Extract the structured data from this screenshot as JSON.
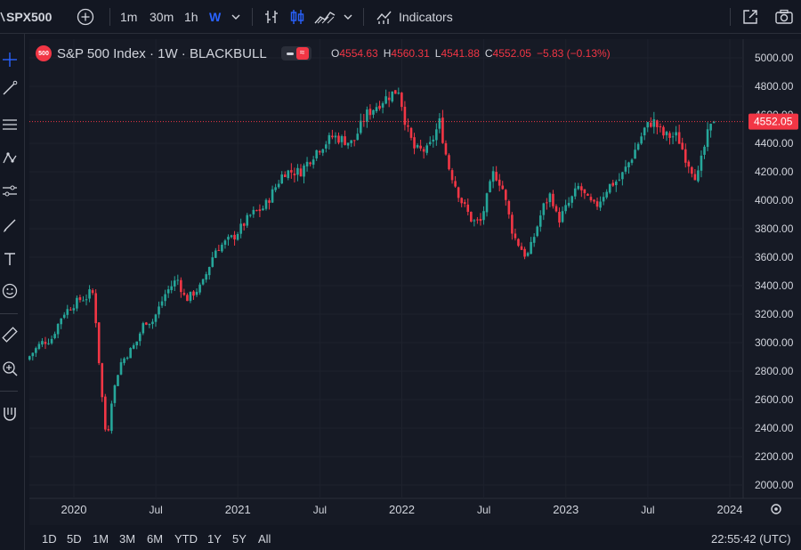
{
  "toolbar": {
    "symbol": "SPX500",
    "intervals": [
      "1m",
      "30m",
      "1h",
      "W"
    ],
    "active_interval": "W",
    "indicators_label": "Indicators"
  },
  "legend": {
    "badge": "500",
    "title": "S&P 500 Index · 1W · BLACKBULL",
    "ohlc": {
      "open_label": "O",
      "open": "4554.63",
      "high_label": "H",
      "high": "4560.31",
      "low_label": "L",
      "low": "4541.88",
      "close_label": "C",
      "close": "4552.05",
      "change": "−5.83 (−0.13%)"
    }
  },
  "price_label": "4552.05",
  "bottom": {
    "ranges": [
      "1D",
      "5D",
      "1M",
      "3M",
      "6M",
      "YTD",
      "1Y",
      "5Y",
      "All"
    ],
    "clock": "22:55:42 (UTC)"
  },
  "colors": {
    "up": "#26a69a",
    "down": "#f23645",
    "background": "#131722",
    "text": "#d1d4dc",
    "accent": "#2962ff"
  },
  "chart_data": {
    "type": "candlestick",
    "title": "S&P 500 Index · 1W · BLACKBULL",
    "ylim": [
      1930,
      5100
    ],
    "y_ticks": [
      "5000.00",
      "4800.00",
      "4600.00",
      "4400.00",
      "4200.00",
      "4000.00",
      "3800.00",
      "3600.00",
      "3400.00",
      "3200.00",
      "3000.00",
      "2800.00",
      "2600.00",
      "2400.00",
      "2200.00",
      "2000.00"
    ],
    "x_ticks": [
      {
        "label": "2020",
        "t": 2020.0
      },
      {
        "label": "Jul",
        "t": 2020.5
      },
      {
        "label": "2021",
        "t": 2021.0
      },
      {
        "label": "Jul",
        "t": 2021.5
      },
      {
        "label": "2022",
        "t": 2022.0
      },
      {
        "label": "Jul",
        "t": 2022.5
      },
      {
        "label": "2023",
        "t": 2023.0
      },
      {
        "label": "Jul",
        "t": 2023.5
      },
      {
        "label": "2024",
        "t": 2024.0
      }
    ],
    "x_range": [
      2019.72,
      2024.1
    ],
    "last_price": 4552.05,
    "anchors": [
      [
        2019.73,
        2880
      ],
      [
        2019.82,
        3000
      ],
      [
        2019.88,
        3020
      ],
      [
        2019.95,
        3200
      ],
      [
        2020.05,
        3300
      ],
      [
        2020.1,
        3320
      ],
      [
        2020.13,
        3380
      ],
      [
        2020.15,
        3200
      ],
      [
        2020.17,
        2900
      ],
      [
        2020.2,
        2500
      ],
      [
        2020.22,
        2300
      ],
      [
        2020.25,
        2600
      ],
      [
        2020.3,
        2850
      ],
      [
        2020.4,
        3000
      ],
      [
        2020.45,
        3150
      ],
      [
        2020.5,
        3150
      ],
      [
        2020.58,
        3350
      ],
      [
        2020.65,
        3450
      ],
      [
        2020.7,
        3300
      ],
      [
        2020.8,
        3400
      ],
      [
        2020.88,
        3650
      ],
      [
        2021.0,
        3750
      ],
      [
        2021.1,
        3900
      ],
      [
        2021.18,
        3950
      ],
      [
        2021.3,
        4200
      ],
      [
        2021.4,
        4200
      ],
      [
        2021.5,
        4350
      ],
      [
        2021.6,
        4450
      ],
      [
        2021.72,
        4400
      ],
      [
        2021.8,
        4600
      ],
      [
        2021.9,
        4700
      ],
      [
        2021.96,
        4750
      ],
      [
        2022.0,
        4780
      ],
      [
        2022.05,
        4500
      ],
      [
        2022.1,
        4350
      ],
      [
        2022.18,
        4350
      ],
      [
        2022.25,
        4550
      ],
      [
        2022.3,
        4250
      ],
      [
        2022.38,
        4000
      ],
      [
        2022.45,
        3850
      ],
      [
        2022.5,
        3850
      ],
      [
        2022.58,
        4200
      ],
      [
        2022.63,
        4100
      ],
      [
        2022.7,
        3750
      ],
      [
        2022.78,
        3600
      ],
      [
        2022.8,
        3650
      ],
      [
        2022.88,
        3950
      ],
      [
        2022.93,
        4050
      ],
      [
        2022.97,
        3850
      ],
      [
        2023.05,
        4000
      ],
      [
        2023.1,
        4100
      ],
      [
        2023.15,
        4000
      ],
      [
        2023.2,
        3950
      ],
      [
        2023.28,
        4100
      ],
      [
        2023.35,
        4150
      ],
      [
        2023.42,
        4300
      ],
      [
        2023.5,
        4500
      ],
      [
        2023.55,
        4560
      ],
      [
        2023.62,
        4450
      ],
      [
        2023.7,
        4450
      ],
      [
        2023.75,
        4300
      ],
      [
        2023.82,
        4150
      ],
      [
        2023.85,
        4300
      ],
      [
        2023.88,
        4450
      ],
      [
        2023.92,
        4552
      ]
    ]
  }
}
